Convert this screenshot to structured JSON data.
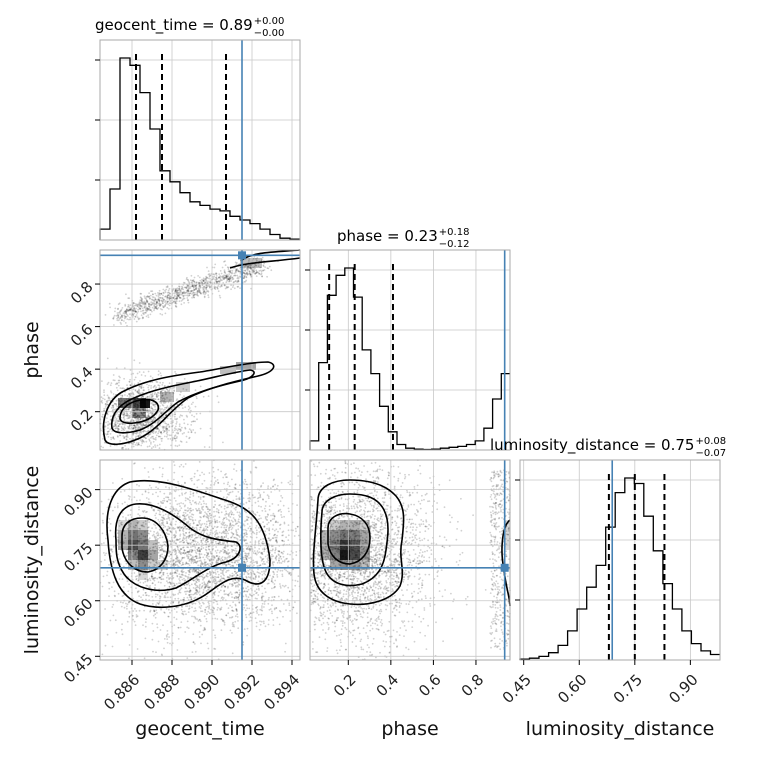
{
  "parameters": [
    "geocent_time",
    "phase",
    "luminosity_distance"
  ],
  "titles": [
    {
      "param": "geocent_time",
      "median": "0.89",
      "plus": "+0.00",
      "minus": "−0.00"
    },
    {
      "param": "phase",
      "median": "0.23",
      "plus": "+0.18",
      "minus": "−0.12"
    },
    {
      "param": "luminosity_distance",
      "median": "0.75",
      "plus": "+0.08",
      "minus": "−0.07"
    }
  ],
  "colors": {
    "truth": "#4682b4",
    "hist": "#000000",
    "density": "#000000"
  },
  "chart_data": {
    "type": "corner",
    "axis_labels": {
      "x": [
        "geocent_time",
        "phase",
        "luminosity_distance"
      ],
      "y": [
        "phase",
        "luminosity_distance"
      ]
    },
    "ticks": {
      "geocent_time": [
        "0.886",
        "0.888",
        "0.890",
        "0.892",
        "0.894"
      ],
      "phase": [
        "0.2",
        "0.4",
        "0.6",
        "0.8"
      ],
      "luminosity_distance": [
        "0.45",
        "0.60",
        "0.75",
        "0.90"
      ]
    },
    "ranges": {
      "geocent_time": [
        0.8844,
        0.8944
      ],
      "phase": [
        0.02,
        0.96
      ],
      "luminosity_distance": [
        0.44,
        0.98
      ]
    },
    "truths": {
      "geocent_time": 0.8915,
      "phase": 0.935,
      "luminosity_distance": 0.689
    },
    "quantiles": {
      "geocent_time": [
        0.8862,
        0.8875,
        0.8907
      ],
      "phase": [
        0.11,
        0.23,
        0.41
      ],
      "luminosity_distance": [
        0.68,
        0.75,
        0.83
      ]
    },
    "histograms": {
      "geocent_time": {
        "range": [
          0.8844,
          0.8944
        ],
        "counts": [
          0.06,
          0.28,
          1.0,
          0.96,
          0.81,
          0.61,
          0.38,
          0.32,
          0.26,
          0.21,
          0.19,
          0.17,
          0.16,
          0.13,
          0.11,
          0.09,
          0.06,
          0.03,
          0.01,
          0.005
        ]
      },
      "phase": {
        "range": [
          0.02,
          0.96
        ],
        "counts": [
          0.05,
          0.48,
          0.85,
          0.96,
          1.0,
          0.84,
          0.55,
          0.42,
          0.24,
          0.1,
          0.03,
          0.01,
          0.005,
          0.003,
          0.005,
          0.01,
          0.015,
          0.02,
          0.03,
          0.05,
          0.12,
          0.28,
          0.42
        ]
      },
      "luminosity_distance": {
        "range": [
          0.44,
          0.98
        ],
        "counts": [
          0.005,
          0.01,
          0.02,
          0.04,
          0.08,
          0.16,
          0.28,
          0.4,
          0.52,
          0.73,
          0.92,
          1.0,
          0.97,
          0.79,
          0.6,
          0.42,
          0.28,
          0.16,
          0.09,
          0.05,
          0.03
        ]
      }
    }
  }
}
